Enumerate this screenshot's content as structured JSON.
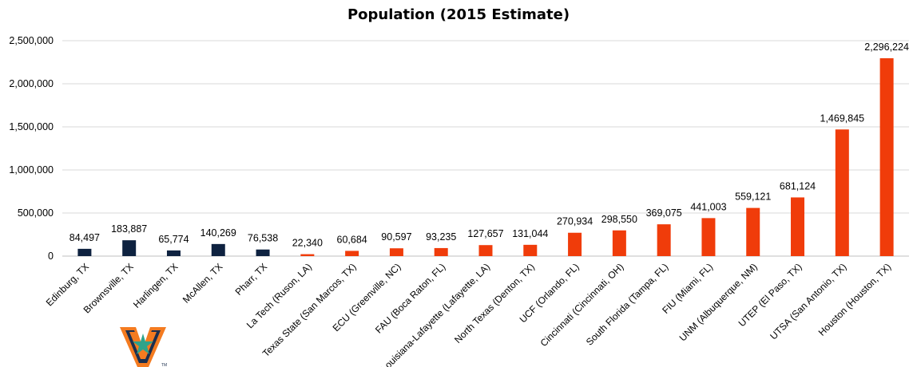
{
  "chart_data": {
    "type": "bar",
    "title": "Population (2015 Estimate)",
    "xlabel": "",
    "ylabel": "",
    "ylim": [
      0,
      2500000
    ],
    "yticks": [
      0,
      500000,
      1000000,
      1500000,
      2000000,
      2500000
    ],
    "ytick_labels": [
      "0",
      "500,000",
      "1,000,000",
      "1,500,000",
      "2,000,000",
      "2,500,000"
    ],
    "grid": true,
    "legend": "none",
    "categories": [
      "Edinburg, TX",
      "Brownsville, TX",
      "Harlingen, TX",
      "McAllen, TX",
      "Pharr, TX",
      "La Tech (Ruson, LA)",
      "Texas State (San Marcos, TX)",
      "ECU (Greenville, NC)",
      "FAU (Boca Raton, FL)",
      "Louisiana-Lafayette (Lafayette, LA)",
      "North Texas (Denton, TX)",
      "UCF (Orlando, FL)",
      "Cincinnati (Cincinnati, OH)",
      "South Florida (Tampa, FL)",
      "FIU (Miami, FL)",
      "UNM (Albuquerque, NM)",
      "UTEP (El Paso, TX)",
      "UTSA (San Antonio, TX)",
      "Houston (Houston, TX)"
    ],
    "values": [
      84497,
      183887,
      65774,
      140269,
      76538,
      22340,
      60684,
      90597,
      93235,
      127657,
      131044,
      270934,
      298550,
      369075,
      441003,
      559121,
      681124,
      1469845,
      2296224
    ],
    "value_labels": [
      "84,497",
      "183,887",
      "65,774",
      "140,269",
      "76,538",
      "22,340",
      "60,684",
      "90,597",
      "93,235",
      "127,657",
      "131,044",
      "270,934",
      "298,550",
      "369,075",
      "441,003",
      "559,121",
      "681,124",
      "1,469,845",
      "2,296,224"
    ],
    "bar_colors": [
      "#0e2240",
      "#0e2240",
      "#0e2240",
      "#0e2240",
      "#0e2240",
      "#f03c0a",
      "#f03c0a",
      "#f03c0a",
      "#f03c0a",
      "#f03c0a",
      "#f03c0a",
      "#f03c0a",
      "#f03c0a",
      "#f03c0a",
      "#f03c0a",
      "#f03c0a",
      "#f03c0a",
      "#f03c0a",
      "#f03c0a"
    ]
  },
  "logo": {
    "icon": "utrgv-v-logo-icon",
    "colors": {
      "orange": "#f47b20",
      "navy": "#1c2f4e",
      "green": "#2ea38a"
    }
  }
}
